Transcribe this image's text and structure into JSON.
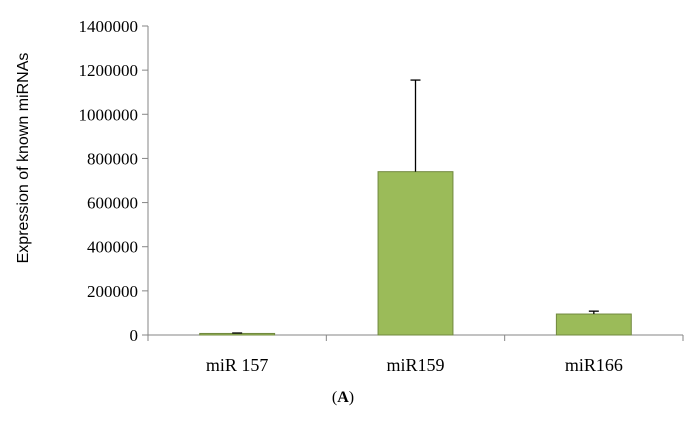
{
  "chart_data": {
    "type": "bar",
    "categories": [
      "miR 157",
      "miR159",
      "miR166"
    ],
    "values": [
      7000,
      740000,
      95000
    ],
    "error_upper": [
      2000,
      415000,
      13000
    ],
    "title": "",
    "xlabel": "",
    "ylabel": "Expression of known miRNAs",
    "ylim": [
      0,
      1400000
    ],
    "yticks": [
      0,
      200000,
      400000,
      600000,
      800000,
      1000000,
      1200000,
      1400000
    ],
    "ytick_labels": [
      "0",
      "200000",
      "400000",
      "600000",
      "800000",
      "1000000",
      "1200000",
      "1400000"
    ],
    "grid": false,
    "legend": "none",
    "bar_color": "#9bbb59",
    "bar_edge_color": "#71893f"
  },
  "caption": {
    "open": "(",
    "letter": "A",
    "close": ")"
  }
}
